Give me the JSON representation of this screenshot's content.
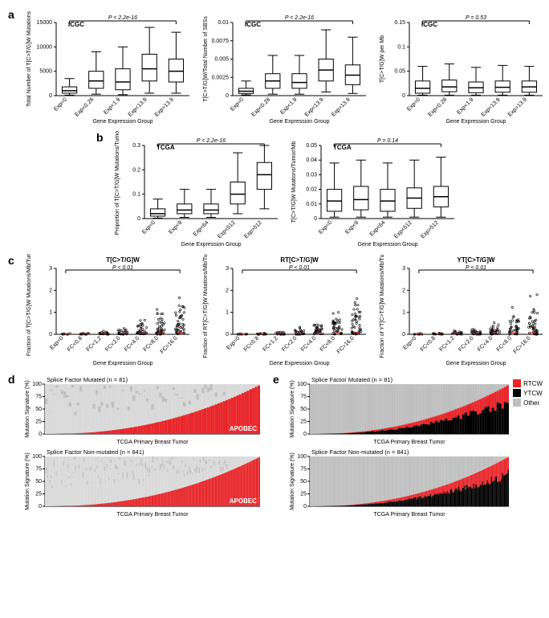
{
  "panelA": {
    "label": "a",
    "charts": [
      {
        "title": "ICGC",
        "pvalue": "P < 2.2e-16",
        "ylabel": "Total Number of T[C>T/G]W Mutations",
        "xlabel": "Gene Expression Group",
        "categories": [
          "Exp=0",
          "Exp<0.28",
          "Exp<1.9",
          "Exp<13.9",
          "Exp>13.9"
        ],
        "ylim": [
          0,
          15000
        ],
        "yticks": [
          0,
          5000,
          10000,
          15000
        ],
        "boxes": [
          {
            "q1": 500,
            "med": 1000,
            "q3": 1800,
            "wlow": 100,
            "whigh": 3500
          },
          {
            "q1": 1500,
            "med": 3000,
            "q3": 5000,
            "wlow": 300,
            "whigh": 9000
          },
          {
            "q1": 1200,
            "med": 2800,
            "q3": 5500,
            "wlow": 200,
            "whigh": 10000
          },
          {
            "q1": 3000,
            "med": 5500,
            "q3": 8500,
            "wlow": 500,
            "whigh": 14000
          },
          {
            "q1": 2800,
            "med": 5000,
            "q3": 7500,
            "wlow": 500,
            "whigh": 13000
          }
        ]
      },
      {
        "title": "ICGC",
        "pvalue": "P < 2.2e-16",
        "ylabel": "T[C>T/G]W/Total Number of SBSs",
        "xlabel": "Gene Expression Group",
        "categories": [
          "Exp=0",
          "Exp<0.28",
          "Exp<1.9",
          "Exp<13.9",
          "Exp>13.9"
        ],
        "ylim": [
          0,
          0.01
        ],
        "yticks": [
          0,
          0.0025,
          0.005,
          0.0075,
          0.01
        ],
        "boxes": [
          {
            "q1": 0.0003,
            "med": 0.0006,
            "q3": 0.001,
            "wlow": 0.0001,
            "whigh": 0.002
          },
          {
            "q1": 0.001,
            "med": 0.002,
            "q3": 0.003,
            "wlow": 0.0002,
            "whigh": 0.0055
          },
          {
            "q1": 0.001,
            "med": 0.0018,
            "q3": 0.003,
            "wlow": 0.0002,
            "whigh": 0.0055
          },
          {
            "q1": 0.002,
            "med": 0.0035,
            "q3": 0.005,
            "wlow": 0.0005,
            "whigh": 0.009
          },
          {
            "q1": 0.0015,
            "med": 0.0028,
            "q3": 0.0042,
            "wlow": 0.0003,
            "whigh": 0.008
          }
        ]
      },
      {
        "title": "ICGC",
        "pvalue": "P = 0.53",
        "ylabel": "T[C>T/G]W per Mb",
        "xlabel": "Gene Expression Group",
        "categories": [
          "Exp=0",
          "Exp<0.28",
          "Exp<1.9",
          "Exp<13.9",
          "Exp>13.9"
        ],
        "ylim": [
          0,
          0.15
        ],
        "yticks": [
          0,
          0.05,
          0.1,
          0.15
        ],
        "boxes": [
          {
            "q1": 0.005,
            "med": 0.015,
            "q3": 0.03,
            "wlow": 0.001,
            "whigh": 0.06
          },
          {
            "q1": 0.008,
            "med": 0.018,
            "q3": 0.032,
            "wlow": 0.001,
            "whigh": 0.065
          },
          {
            "q1": 0.006,
            "med": 0.016,
            "q3": 0.028,
            "wlow": 0.001,
            "whigh": 0.058
          },
          {
            "q1": 0.007,
            "med": 0.017,
            "q3": 0.03,
            "wlow": 0.001,
            "whigh": 0.062
          },
          {
            "q1": 0.007,
            "med": 0.018,
            "q3": 0.03,
            "wlow": 0.001,
            "whigh": 0.06
          }
        ]
      }
    ]
  },
  "panelB": {
    "label": "b",
    "charts": [
      {
        "title": "TCGA",
        "pvalue": "P < 2.2e-16",
        "ylabel": "Proportion of T[C>T/G]W Mutations/Tumor",
        "xlabel": "Gene Expression Group",
        "categories": [
          "Exp=0",
          "Exp<9",
          "Exp<64",
          "Exp<512",
          "Exp>512"
        ],
        "ylim": [
          0,
          0.3
        ],
        "yticks": [
          0,
          0.1,
          0.2,
          0.3
        ],
        "boxes": [
          {
            "q1": 0.01,
            "med": 0.02,
            "q3": 0.04,
            "wlow": 0.002,
            "whigh": 0.08
          },
          {
            "q1": 0.02,
            "med": 0.035,
            "q3": 0.06,
            "wlow": 0.005,
            "whigh": 0.12
          },
          {
            "q1": 0.02,
            "med": 0.035,
            "q3": 0.06,
            "wlow": 0.005,
            "whigh": 0.12
          },
          {
            "q1": 0.06,
            "med": 0.1,
            "q3": 0.15,
            "wlow": 0.02,
            "whigh": 0.27
          },
          {
            "q1": 0.12,
            "med": 0.18,
            "q3": 0.23,
            "wlow": 0.04,
            "whigh": 0.3
          }
        ]
      },
      {
        "title": "TCGA",
        "pvalue": "P = 0.14",
        "ylabel": "T[C>T/G]W Mutations/Tumor/Mb",
        "xlabel": "Gene Expression Group",
        "categories": [
          "Exp=0",
          "Exp<9",
          "Exp<64",
          "Exp<512",
          "Exp>512"
        ],
        "ylim": [
          0,
          0.05
        ],
        "yticks": [
          0,
          0.01,
          0.02,
          0.03,
          0.04,
          0.05
        ],
        "boxes": [
          {
            "q1": 0.005,
            "med": 0.012,
            "q3": 0.02,
            "wlow": 0.001,
            "whigh": 0.038
          },
          {
            "q1": 0.006,
            "med": 0.013,
            "q3": 0.022,
            "wlow": 0.001,
            "whigh": 0.04
          },
          {
            "q1": 0.005,
            "med": 0.012,
            "q3": 0.02,
            "wlow": 0.001,
            "whigh": 0.038
          },
          {
            "q1": 0.007,
            "med": 0.014,
            "q3": 0.021,
            "wlow": 0.001,
            "whigh": 0.04
          },
          {
            "q1": 0.008,
            "med": 0.015,
            "q3": 0.022,
            "wlow": 0.001,
            "whigh": 0.042
          }
        ]
      }
    ]
  },
  "panelC": {
    "label": "c",
    "charts": [
      {
        "title": "T[C>T/G]W",
        "pvalue": "P < 0.01",
        "ylabel": "Fraction of T[C>T/G]W Mutations/Mb/Tumor",
        "xlabel": "Gene Expression Group",
        "categories": [
          "Exp=0",
          "FC<0.8",
          "FC<1.2",
          "FC<2.0",
          "FC<4.0",
          "FC<8.0",
          "FC>16.0"
        ],
        "ylim": [
          0,
          3
        ],
        "yticks": [
          0,
          1,
          2,
          3
        ]
      },
      {
        "title": "RT[C>T/G]W",
        "pvalue": "P < 0.01",
        "ylabel": "Fraction of RT[C>T/G]W Mutations/Mb/Tumor",
        "xlabel": "Gene Expression Group",
        "categories": [
          "Exp=0",
          "FC<0.8",
          "FC<1.2",
          "FC<2.0",
          "FC<4.0",
          "FC<8.0",
          "FC>16.0"
        ],
        "ylim": [
          0,
          3
        ],
        "yticks": [
          0,
          1,
          2,
          3
        ]
      },
      {
        "title": "YT[C>T/G]W",
        "pvalue": "P < 0.01",
        "ylabel": "Fraction of YT[C>T/G]W Mutations/Mb/Tumor",
        "xlabel": "Gene Expression Group",
        "categories": [
          "Exp=0",
          "FC<0.8",
          "FC<1.2",
          "FC<2.0",
          "FC<4.0",
          "FC<8.0",
          "FC>16.0"
        ],
        "ylim": [
          0,
          3
        ],
        "yticks": [
          0,
          1,
          2,
          3
        ]
      }
    ]
  },
  "panelD": {
    "label": "d",
    "charts": [
      {
        "title": "Splice Factor Mutated (n = 81)",
        "apobec_label": "APOBEC"
      },
      {
        "title": "Splice Factor Non-mutated (n = 841)",
        "apobec_label": "APOBEC"
      }
    ],
    "ylabel": "Mutation Signature (%)",
    "xlabel": "TCGA Primary Breast Tumor",
    "yticks": [
      0,
      25,
      50,
      75,
      100
    ]
  },
  "panelE": {
    "label": "e",
    "charts": [
      {
        "title": "Splice Factor Mutated (n = 81)"
      },
      {
        "title": "Splice Factor Non-mutated (n = 841)"
      }
    ],
    "ylabel": "Mutation Signature (%)",
    "xlabel": "TCGA Primary Breast Tumor",
    "yticks": [
      0,
      25,
      50,
      75,
      100
    ],
    "legend": [
      {
        "label": "RTCW",
        "color": "#e8262a"
      },
      {
        "label": "YTCW",
        "color": "#000000"
      },
      {
        "label": "Other",
        "color": "#bfbfbf"
      }
    ]
  },
  "colors": {
    "box_stroke": "#000000",
    "box_fill": "#ffffff",
    "red": "#e8262a",
    "black": "#000000",
    "gray": "#bfbfbf",
    "lightgray": "#d9d9d9"
  }
}
